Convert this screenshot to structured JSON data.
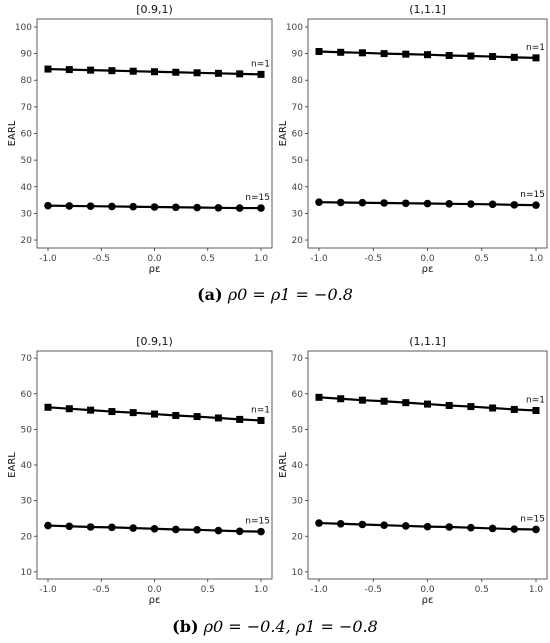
{
  "captions": [
    {
      "label": "a",
      "text": "ρ0 = ρ1 = −0.8"
    },
    {
      "label": "b",
      "text": "ρ0 = −0.4, ρ1 = −0.8"
    }
  ],
  "chart_data": [
    {
      "type": "line",
      "title": "[0.9,1)",
      "xlabel": "ρε",
      "ylabel": "EARL",
      "xlim": [
        -1.0,
        1.0
      ],
      "ylim": [
        17,
        103
      ],
      "x_ticks": [
        "-1.0",
        "-0.5",
        "0.0",
        "0.5",
        "1.0"
      ],
      "y_ticks": [
        "20",
        "30",
        "40",
        "50",
        "60",
        "70",
        "80",
        "90",
        "100"
      ],
      "x": [
        -1.0,
        -0.8,
        -0.6,
        -0.4,
        -0.2,
        0.0,
        0.2,
        0.4,
        0.6,
        0.8,
        1.0
      ],
      "series": [
        {
          "name": "n=1",
          "marker": "square",
          "values": [
            84.2,
            84.0,
            83.8,
            83.6,
            83.4,
            83.2,
            83.0,
            82.8,
            82.6,
            82.4,
            82.2
          ]
        },
        {
          "name": "n=15",
          "marker": "circle",
          "values": [
            32.9,
            32.8,
            32.7,
            32.6,
            32.5,
            32.4,
            32.3,
            32.2,
            32.1,
            32.0,
            32.0
          ]
        }
      ],
      "grid": false
    },
    {
      "type": "line",
      "title": "(1,1.1]",
      "xlabel": "ρε",
      "ylabel": "EARL",
      "xlim": [
        -1.0,
        1.0
      ],
      "ylim": [
        17,
        103
      ],
      "x_ticks": [
        "-1.0",
        "-0.5",
        "0.0",
        "0.5",
        "1.0"
      ],
      "y_ticks": [
        "20",
        "30",
        "40",
        "50",
        "60",
        "70",
        "80",
        "90",
        "100"
      ],
      "x": [
        -1.0,
        -0.8,
        -0.6,
        -0.4,
        -0.2,
        0.0,
        0.2,
        0.4,
        0.6,
        0.8,
        1.0
      ],
      "series": [
        {
          "name": "n=1",
          "marker": "square",
          "values": [
            90.8,
            90.5,
            90.3,
            90.0,
            89.8,
            89.6,
            89.3,
            89.1,
            88.9,
            88.6,
            88.4
          ]
        },
        {
          "name": "n=15",
          "marker": "circle",
          "values": [
            34.2,
            34.1,
            34.0,
            33.9,
            33.8,
            33.7,
            33.6,
            33.5,
            33.4,
            33.2,
            33.1
          ]
        }
      ],
      "grid": false
    },
    {
      "type": "line",
      "title": "[0.9,1)",
      "xlabel": "ρε",
      "ylabel": "EARL",
      "xlim": [
        -1.0,
        1.0
      ],
      "ylim": [
        8,
        72
      ],
      "x_ticks": [
        "-1.0",
        "-0.5",
        "0.0",
        "0.5",
        "1.0"
      ],
      "y_ticks": [
        "10",
        "20",
        "30",
        "40",
        "50",
        "60",
        "70"
      ],
      "x": [
        -1.0,
        -0.8,
        -0.6,
        -0.4,
        -0.2,
        0.0,
        0.2,
        0.4,
        0.6,
        0.8,
        1.0
      ],
      "series": [
        {
          "name": "n=1",
          "marker": "square",
          "values": [
            56.2,
            55.8,
            55.4,
            55.0,
            54.7,
            54.3,
            53.9,
            53.6,
            53.2,
            52.8,
            52.5
          ]
        },
        {
          "name": "n=15",
          "marker": "circle",
          "values": [
            23.0,
            22.8,
            22.6,
            22.5,
            22.3,
            22.1,
            21.9,
            21.8,
            21.6,
            21.4,
            21.3
          ]
        }
      ],
      "grid": false
    },
    {
      "type": "line",
      "title": "(1,1.1]",
      "xlabel": "ρε",
      "ylabel": "EARL",
      "xlim": [
        -1.0,
        1.0
      ],
      "ylim": [
        8,
        72
      ],
      "x_ticks": [
        "-1.0",
        "-0.5",
        "0.0",
        "0.5",
        "1.0"
      ],
      "y_ticks": [
        "10",
        "20",
        "30",
        "40",
        "50",
        "60",
        "70"
      ],
      "x": [
        -1.0,
        -0.8,
        -0.6,
        -0.4,
        -0.2,
        0.0,
        0.2,
        0.4,
        0.6,
        0.8,
        1.0
      ],
      "series": [
        {
          "name": "n=1",
          "marker": "square",
          "values": [
            59.0,
            58.6,
            58.2,
            57.9,
            57.5,
            57.1,
            56.7,
            56.4,
            56.0,
            55.6,
            55.3
          ]
        },
        {
          "name": "n=15",
          "marker": "circle",
          "values": [
            23.7,
            23.5,
            23.3,
            23.1,
            22.9,
            22.7,
            22.6,
            22.4,
            22.2,
            22.0,
            21.9
          ]
        }
      ],
      "grid": false
    }
  ]
}
